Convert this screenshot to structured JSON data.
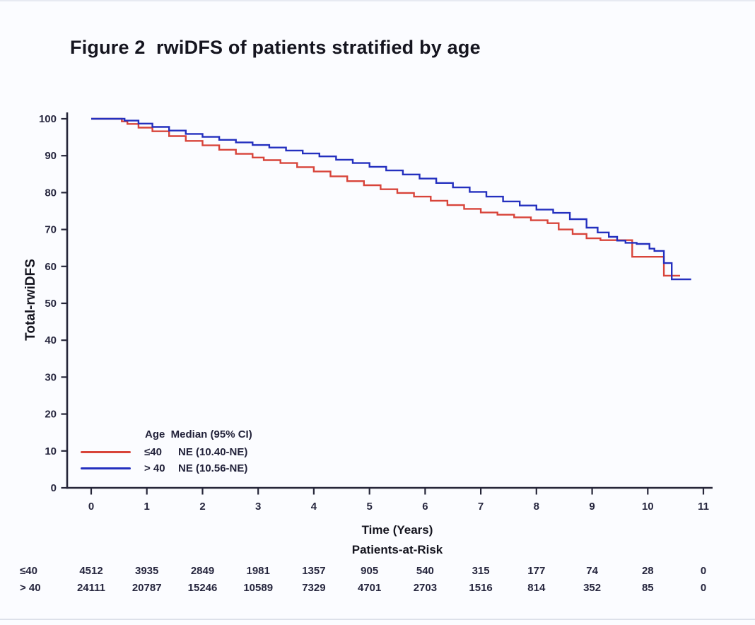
{
  "page": {
    "title": "Figure 2  rwiDFS of patients stratified by age"
  },
  "chart_data": {
    "type": "line",
    "subtype": "kaplan-meier-step-curves",
    "title": "Figure 2  rwiDFS of patients stratified by age",
    "xlabel": "Time (Years)",
    "ylabel": "Total-rwiDFS",
    "xlim": [
      0,
      11
    ],
    "ylim": [
      0,
      100
    ],
    "xticks": [
      0,
      1,
      2,
      3,
      4,
      5,
      6,
      7,
      8,
      9,
      10,
      11
    ],
    "yticks": [
      0,
      10,
      20,
      30,
      40,
      50,
      60,
      70,
      80,
      90,
      100
    ],
    "grid": false,
    "axis_color": "#262639",
    "legend": {
      "position": "inside-bottom-left",
      "header": "Age  Median (95% CI)",
      "entries": [
        {
          "age": "≤40",
          "median": "NE (10.40-NE)",
          "color": "#d8443a"
        },
        {
          "age": "> 40",
          "median": "NE (10.56-NE)",
          "color": "#2430bf"
        }
      ]
    },
    "series": [
      {
        "name": "≤40",
        "color": "#d8443a",
        "points": [
          [
            0,
            100
          ],
          [
            0.55,
            99.3
          ],
          [
            0.65,
            98.6
          ],
          [
            0.85,
            97.6
          ],
          [
            1.1,
            96.6
          ],
          [
            1.4,
            95.3
          ],
          [
            1.7,
            94.0
          ],
          [
            2.0,
            92.8
          ],
          [
            2.3,
            91.6
          ],
          [
            2.6,
            90.5
          ],
          [
            2.9,
            89.5
          ],
          [
            3.1,
            88.8
          ],
          [
            3.4,
            88.0
          ],
          [
            3.7,
            86.9
          ],
          [
            4.0,
            85.7
          ],
          [
            4.3,
            84.4
          ],
          [
            4.6,
            83.1
          ],
          [
            4.9,
            82.0
          ],
          [
            5.2,
            80.9
          ],
          [
            5.5,
            79.9
          ],
          [
            5.8,
            78.9
          ],
          [
            6.1,
            77.8
          ],
          [
            6.4,
            76.6
          ],
          [
            6.7,
            75.6
          ],
          [
            7.0,
            74.6
          ],
          [
            7.3,
            74.0
          ],
          [
            7.6,
            73.3
          ],
          [
            7.9,
            72.5
          ],
          [
            8.2,
            71.7
          ],
          [
            8.4,
            70.0
          ],
          [
            8.65,
            68.8
          ],
          [
            8.9,
            67.6
          ],
          [
            9.15,
            67.1
          ],
          [
            9.72,
            62.6
          ],
          [
            10.29,
            57.5
          ],
          [
            10.58,
            57.5
          ]
        ]
      },
      {
        "name": "> 40",
        "color": "#2430bf",
        "points": [
          [
            0,
            100
          ],
          [
            0.6,
            99.5
          ],
          [
            0.85,
            98.7
          ],
          [
            1.1,
            97.8
          ],
          [
            1.4,
            96.8
          ],
          [
            1.7,
            95.9
          ],
          [
            2.0,
            95.1
          ],
          [
            2.3,
            94.3
          ],
          [
            2.6,
            93.6
          ],
          [
            2.9,
            92.9
          ],
          [
            3.2,
            92.2
          ],
          [
            3.5,
            91.4
          ],
          [
            3.8,
            90.6
          ],
          [
            4.1,
            89.8
          ],
          [
            4.4,
            88.9
          ],
          [
            4.7,
            88.0
          ],
          [
            5.0,
            87.0
          ],
          [
            5.3,
            86.0
          ],
          [
            5.6,
            84.9
          ],
          [
            5.9,
            83.8
          ],
          [
            6.2,
            82.6
          ],
          [
            6.5,
            81.4
          ],
          [
            6.8,
            80.2
          ],
          [
            7.1,
            78.9
          ],
          [
            7.4,
            77.6
          ],
          [
            7.7,
            76.5
          ],
          [
            8.0,
            75.4
          ],
          [
            8.3,
            74.5
          ],
          [
            8.6,
            72.8
          ],
          [
            8.9,
            70.5
          ],
          [
            9.1,
            69.2
          ],
          [
            9.3,
            68.0
          ],
          [
            9.45,
            67.0
          ],
          [
            9.6,
            66.4
          ],
          [
            9.8,
            66.1
          ],
          [
            10.03,
            64.8
          ],
          [
            10.12,
            64.2
          ],
          [
            10.29,
            60.9
          ],
          [
            10.43,
            56.5
          ],
          [
            10.78,
            56.5
          ]
        ]
      }
    ],
    "risk_table": {
      "title": "Patients-at-Risk",
      "times": [
        0,
        1,
        2,
        3,
        4,
        5,
        6,
        7,
        8,
        9,
        10,
        11
      ],
      "rows": [
        {
          "label": "≤40",
          "counts": [
            4512,
            3935,
            2849,
            1981,
            1357,
            905,
            540,
            315,
            177,
            74,
            28,
            0
          ]
        },
        {
          "label": "> 40",
          "counts": [
            24111,
            20787,
            15246,
            10589,
            7329,
            4701,
            2703,
            1516,
            814,
            352,
            85,
            0
          ]
        }
      ]
    }
  }
}
